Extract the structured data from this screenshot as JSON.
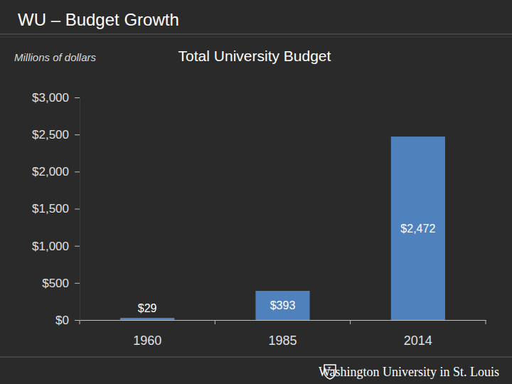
{
  "slide": {
    "heading": "WU – Budget Growth",
    "footer": "Washington University in St. Louis"
  },
  "chart_data": {
    "type": "bar",
    "title": "Total University Budget",
    "y_label": "Millions of dollars",
    "categories": [
      "1960",
      "1985",
      "2014"
    ],
    "values": [
      29,
      393,
      2472
    ],
    "value_labels": [
      "$29",
      "$393",
      "$2,472"
    ],
    "data_labels": true,
    "color": "#4f81bd",
    "ylim": [
      0,
      3000
    ],
    "yticks": [
      {
        "value": 0,
        "label": "$0"
      },
      {
        "value": 500,
        "label": "$500"
      },
      {
        "value": 1000,
        "label": "$1,000"
      },
      {
        "value": 1500,
        "label": "$1,500"
      },
      {
        "value": 2000,
        "label": "$2,000"
      },
      {
        "value": 2500,
        "label": "$2,500"
      },
      {
        "value": 3000,
        "label": "$3,000"
      }
    ],
    "grid": false
  }
}
